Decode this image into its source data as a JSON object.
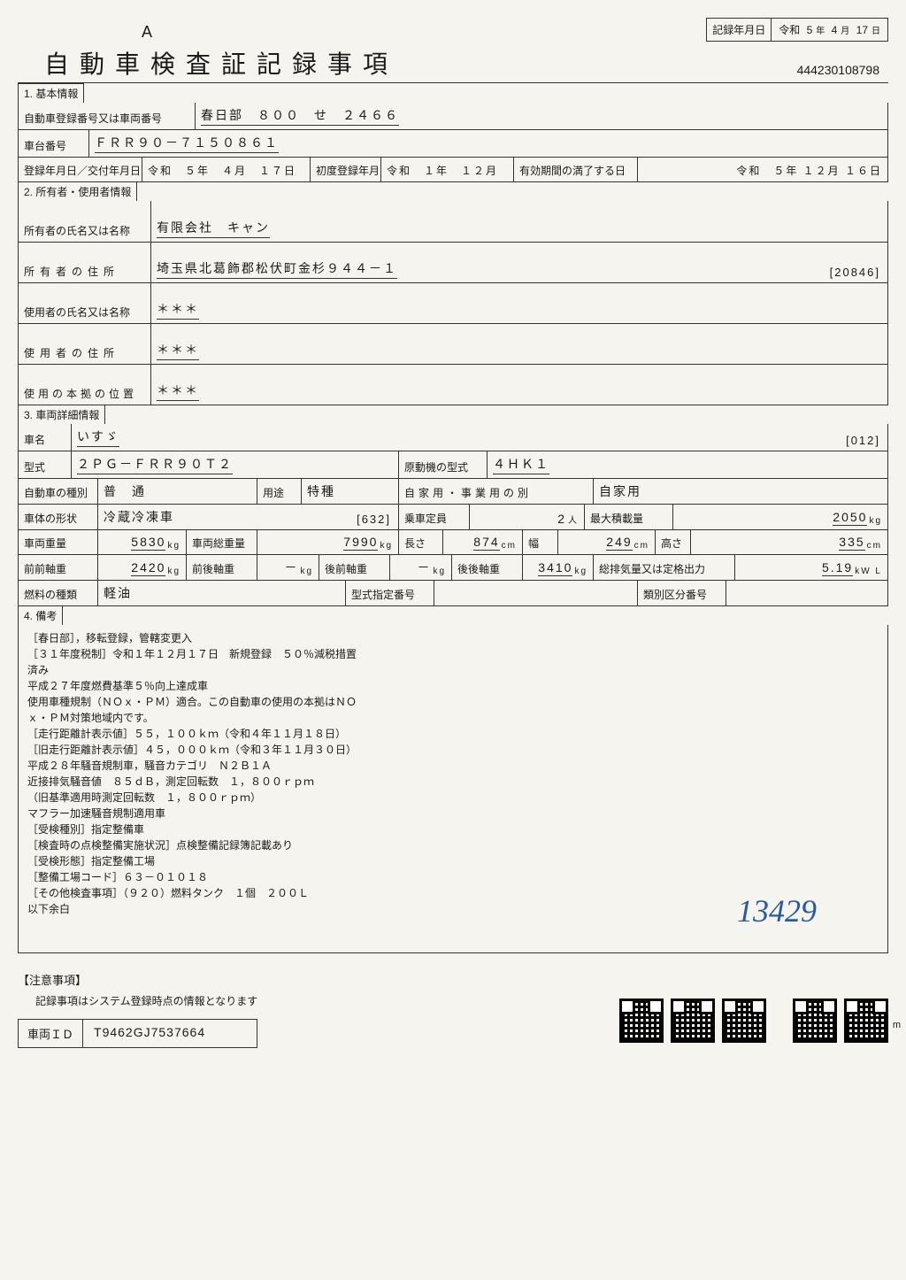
{
  "header": {
    "letter": "A",
    "record_date_label": "記録年月日",
    "era": "令和",
    "year": "5",
    "year_u": "年",
    "month": "4",
    "month_u": "月",
    "day": "17",
    "day_u": "日"
  },
  "title": "自動車検査証記録事項",
  "doc_number": "444230108798",
  "section1": {
    "header": "1. 基本情報",
    "reg_no_label": "自動車登録番号又は車両番号",
    "reg_no_value": "春日部　８００　せ　２４６６",
    "chassis_label": "車台番号",
    "chassis_value": "ＦＲＲ９０－７１５０８６１",
    "reg_date_label": "登録年月日／交付年月日",
    "reg_date_value": "令和　５年　４月　１７日",
    "first_reg_label": "初度登録年月",
    "first_reg_value": "令和　１年　１２月",
    "expiry_label": "有効期間の満了する日",
    "expiry_value": "令和　５年 １２月 １６日"
  },
  "section2": {
    "header": "2. 所有者・使用者情報",
    "owner_name_label": "所有者の氏名又は名称",
    "owner_name_value": "有限会社　キャン",
    "owner_addr_label": "所有者の住所",
    "owner_addr_value": "埼玉県北葛飾郡松伏町金杉９４４－１",
    "owner_addr_code": "[20846]",
    "user_name_label": "使用者の氏名又は名称",
    "user_name_value": "＊＊＊",
    "user_addr_label": "使用者の住所",
    "user_addr_value": "＊＊＊",
    "base_label": "使用の本拠の位置",
    "base_value": "＊＊＊"
  },
  "section3": {
    "header": "3. 車両詳細情報",
    "car_name_label": "車名",
    "car_name_value": "いすゞ",
    "car_name_code": "[012]",
    "model_label": "型式",
    "model_value": "２ＰＧ－ＦＲＲ９０Ｔ２",
    "engine_label": "原動機の型式",
    "engine_value": "４ＨＫ１",
    "kind_label": "自動車の種別",
    "kind_value": "普　通",
    "use_label": "用途",
    "use_value": "特種",
    "private_label": "自家用・事業用の別",
    "private_value": "自家用",
    "body_label": "車体の形状",
    "body_value": "冷蔵冷凍車",
    "body_code": "[632]",
    "capacity_label": "乗車定員",
    "capacity_value": "2",
    "capacity_unit": "人",
    "maxload_label": "最大積載量",
    "maxload_value": "2050",
    "maxload_unit": "kg",
    "weight_label": "車両重量",
    "weight_value": "5830",
    "weight_unit": "kg",
    "gross_label": "車両総重量",
    "gross_value": "7990",
    "gross_unit": "kg",
    "length_label": "長さ",
    "length_value": "874",
    "length_unit": "cm",
    "width_label": "幅",
    "width_value": "249",
    "width_unit": "cm",
    "height_label": "高さ",
    "height_value": "335",
    "height_unit": "cm",
    "ff_label": "前前軸重",
    "ff_value": "2420",
    "ff_unit": "kg",
    "fr_label": "前後軸重",
    "fr_value": "－",
    "fr_unit": "kg",
    "rf_label": "後前軸重",
    "rf_value": "－",
    "rf_unit": "kg",
    "rr_label": "後後軸重",
    "rr_value": "3410",
    "rr_unit": "kg",
    "disp_label": "総排気量又は定格出力",
    "disp_value": "5.19",
    "disp_unit": "kW L",
    "fuel_label": "燃料の種類",
    "fuel_value": "軽油",
    "type_no_label": "型式指定番号",
    "cat_no_label": "類別区分番号"
  },
  "section4": {
    "header": "4. 備考",
    "lines": [
      "［春日部］，移転登録，管轄変更入",
      "［３１年度税制］令和１年１２月１７日　新規登録　５０％減税措置",
      "済み",
      "平成２７年度燃費基準５％向上達成車",
      "使用車種規制（ＮＯｘ・ＰＭ）適合。この自動車の使用の本拠はＮＯ",
      "ｘ・ＰＭ対策地域内です。",
      "［走行距離計表示値］５５，１００ｋｍ（令和４年１１月１８日）",
      "［旧走行距離計表示値］４５，０００ｋｍ（令和３年１１月３０日）",
      "平成２８年騒音規制車，騒音カテゴリ　Ｎ２Ｂ１Ａ",
      "近接排気騒音値　８５ｄＢ，測定回転数　１，８００ｒｐｍ",
      "（旧基準適用時測定回転数　１，８００ｒｐｍ）",
      "マフラー加速騒音規制適用車",
      "［受検種別］指定整備車",
      "［検査時の点検整備実施状況］点検整備記録簿記載あり",
      "［受検形態］指定整備工場",
      "［整備工場コード］６３－０１０１８",
      "［その他検査事項］（９２０）燃料タンク　１個　２００Ｌ",
      "以下余白"
    ],
    "handwritten": "13429"
  },
  "footer": {
    "notice_title": "【注意事項】",
    "notice_text": "記録事項はシステム登録時点の情報となります",
    "vehicle_id_label": "車両ＩＤ",
    "vehicle_id_value": "T9462GJ7537664",
    "side_num": "m"
  }
}
